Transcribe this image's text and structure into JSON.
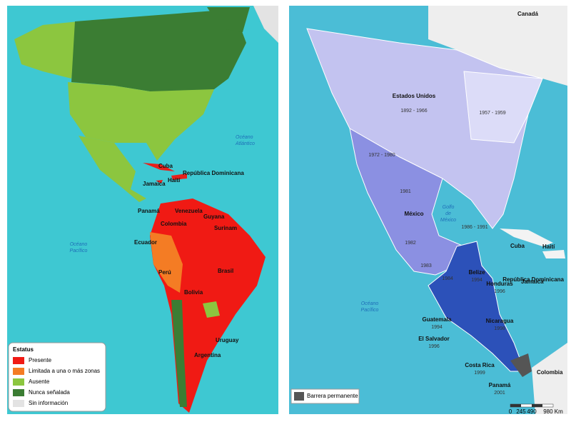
{
  "left_map": {
    "ocean_labels": [
      [
        "Océano",
        "Atlántico"
      ],
      [
        "Océano",
        "Pacífico"
      ]
    ],
    "country_labels": [
      "Cuba",
      "República Dominicana",
      "Haití",
      "Jamaica",
      "Panamá",
      "Venezuela",
      "Guyana",
      "Colombia",
      "Surinam",
      "Ecuador",
      "Perú",
      "Brasil",
      "Bolivia",
      "Uruguay",
      "Argentina"
    ],
    "legend": {
      "title": "Estatus",
      "items": [
        "Presente",
        "Limitada a una o más zonas",
        "Ausente",
        "Nunca señalada",
        "Sin información"
      ]
    }
  },
  "right_map": {
    "labels": [
      "Canadá",
      "Estados Unidos",
      "1892 - 1966",
      "1957 - 1959",
      "1972 - 1980",
      "1981",
      "México",
      "1986 - 1991",
      "1982",
      "1983",
      "1984",
      "Cuba",
      "Haití",
      "Jamaica",
      "República Dominicana",
      "Colombia"
    ],
    "gulf_label": [
      "Golfo",
      "de",
      "México"
    ],
    "ocean_label": [
      "Océano",
      "Pacífico"
    ],
    "dated_labels": [
      [
        "Belize",
        "1994"
      ],
      [
        "Honduras",
        "1996"
      ],
      [
        "Guatemala",
        "1994"
      ],
      [
        "El Salvador",
        "1996"
      ],
      [
        "Nicaragua",
        "1998"
      ],
      [
        "Costa Rica",
        "1999"
      ],
      [
        "Panamá",
        "2001"
      ]
    ],
    "legend": "Barrera permanente",
    "scale": [
      "0",
      "245",
      "490",
      "980 Km"
    ]
  }
}
